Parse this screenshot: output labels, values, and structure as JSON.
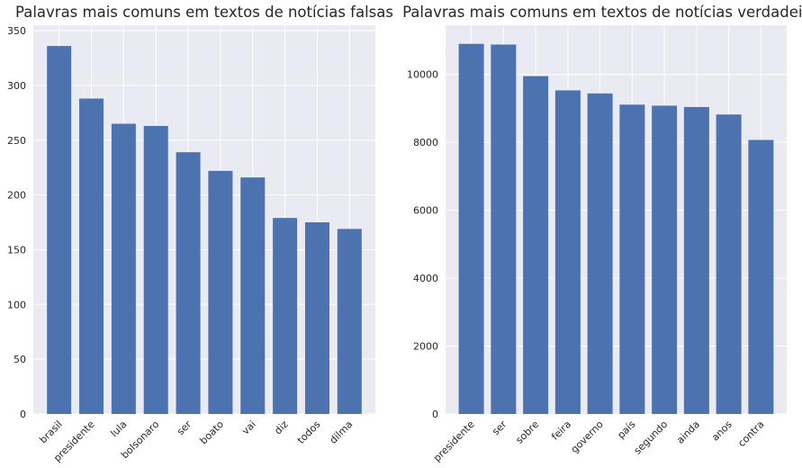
{
  "chart_data": [
    {
      "type": "bar",
      "title": "Palavras mais comuns em textos de notícias falsas",
      "xlabel": "",
      "ylabel": "",
      "categories": [
        "brasil",
        "presidente",
        "lula",
        "bolsonaro",
        "ser",
        "boato",
        "vai",
        "diz",
        "todos",
        "dilma"
      ],
      "values": [
        336,
        288,
        265,
        263,
        239,
        222,
        216,
        179,
        175,
        169
      ],
      "ylim": [
        0,
        355
      ],
      "yticks": [
        0,
        50,
        100,
        150,
        200,
        250,
        300,
        350
      ],
      "grid": true,
      "color": "#4c72b0"
    },
    {
      "type": "bar",
      "title": "Palavras mais comuns em textos de notícias verdadeiras",
      "xlabel": "",
      "ylabel": "",
      "categories": [
        "presidente",
        "ser",
        "sobre",
        "feira",
        "governo",
        "país",
        "segundo",
        "ainda",
        "anos",
        "contra"
      ],
      "values": [
        10900,
        10880,
        9950,
        9530,
        9440,
        9110,
        9080,
        9040,
        8820,
        8070
      ],
      "ylim": [
        0,
        11450
      ],
      "yticks": [
        0,
        2000,
        4000,
        6000,
        8000,
        10000
      ],
      "grid": true,
      "color": "#4c72b0"
    }
  ]
}
